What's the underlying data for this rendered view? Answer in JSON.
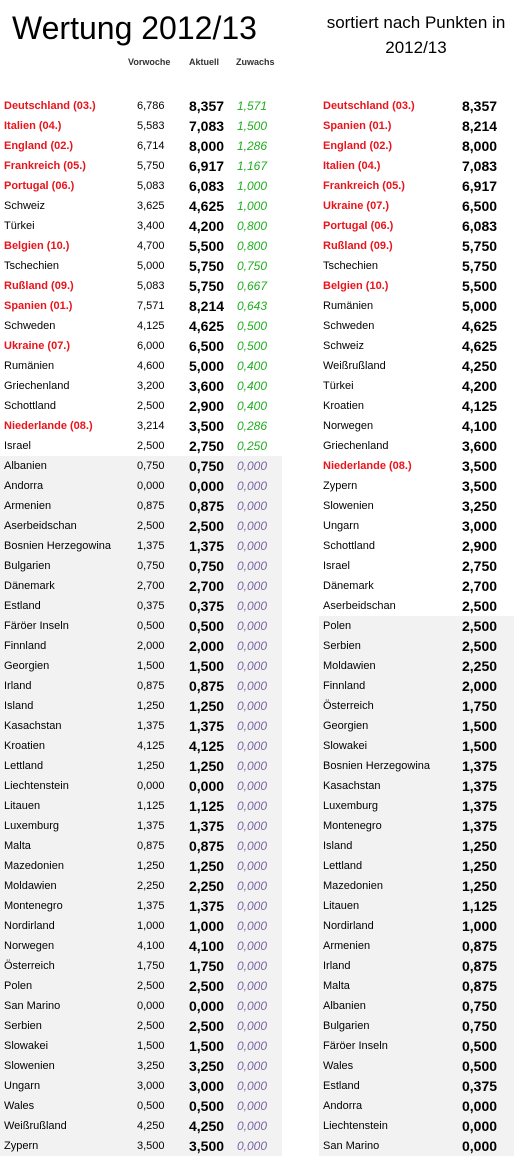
{
  "title": "Wertung 2012/13",
  "subtitle": "sortiert nach Punkten in 2012/13",
  "headers": {
    "vorwoche": "Vorwoche",
    "aktuell": "Aktuell",
    "zuwachs": "Zuwachs"
  },
  "left_rows": [
    {
      "name": "Deutschland (03.)",
      "vorwoche": "6,786",
      "aktuell": "8,357",
      "zuwachs": "1,571",
      "highlight": true
    },
    {
      "name": "Italien (04.)",
      "vorwoche": "5,583",
      "aktuell": "7,083",
      "zuwachs": "1,500",
      "highlight": true
    },
    {
      "name": "England (02.)",
      "vorwoche": "6,714",
      "aktuell": "8,000",
      "zuwachs": "1,286",
      "highlight": true
    },
    {
      "name": "Frankreich (05.)",
      "vorwoche": "5,750",
      "aktuell": "6,917",
      "zuwachs": "1,167",
      "highlight": true
    },
    {
      "name": "Portugal (06.)",
      "vorwoche": "5,083",
      "aktuell": "6,083",
      "zuwachs": "1,000",
      "highlight": true
    },
    {
      "name": "Schweiz",
      "vorwoche": "3,625",
      "aktuell": "4,625",
      "zuwachs": "1,000",
      "highlight": false
    },
    {
      "name": "Türkei",
      "vorwoche": "3,400",
      "aktuell": "4,200",
      "zuwachs": "0,800",
      "highlight": false
    },
    {
      "name": "Belgien (10.)",
      "vorwoche": "4,700",
      "aktuell": "5,500",
      "zuwachs": "0,800",
      "highlight": true
    },
    {
      "name": "Tschechien",
      "vorwoche": "5,000",
      "aktuell": "5,750",
      "zuwachs": "0,750",
      "highlight": false
    },
    {
      "name": "Rußland (09.)",
      "vorwoche": "5,083",
      "aktuell": "5,750",
      "zuwachs": "0,667",
      "highlight": true
    },
    {
      "name": "Spanien (01.)",
      "vorwoche": "7,571",
      "aktuell": "8,214",
      "zuwachs": "0,643",
      "highlight": true
    },
    {
      "name": "Schweden",
      "vorwoche": "4,125",
      "aktuell": "4,625",
      "zuwachs": "0,500",
      "highlight": false
    },
    {
      "name": "Ukraine (07.)",
      "vorwoche": "6,000",
      "aktuell": "6,500",
      "zuwachs": "0,500",
      "highlight": true
    },
    {
      "name": "Rumänien",
      "vorwoche": "4,600",
      "aktuell": "5,000",
      "zuwachs": "0,400",
      "highlight": false
    },
    {
      "name": "Griechenland",
      "vorwoche": "3,200",
      "aktuell": "3,600",
      "zuwachs": "0,400",
      "highlight": false
    },
    {
      "name": "Schottland",
      "vorwoche": "2,500",
      "aktuell": "2,900",
      "zuwachs": "0,400",
      "highlight": false
    },
    {
      "name": "Niederlande (08.)",
      "vorwoche": "3,214",
      "aktuell": "3,500",
      "zuwachs": "0,286",
      "highlight": true
    },
    {
      "name": "Israel",
      "vorwoche": "2,500",
      "aktuell": "2,750",
      "zuwachs": "0,250",
      "highlight": false
    },
    {
      "name": "Albanien",
      "vorwoche": "0,750",
      "aktuell": "0,750",
      "zuwachs": "0,000",
      "highlight": false
    },
    {
      "name": "Andorra",
      "vorwoche": "0,000",
      "aktuell": "0,000",
      "zuwachs": "0,000",
      "highlight": false
    },
    {
      "name": "Armenien",
      "vorwoche": "0,875",
      "aktuell": "0,875",
      "zuwachs": "0,000",
      "highlight": false
    },
    {
      "name": "Aserbeidschan",
      "vorwoche": "2,500",
      "aktuell": "2,500",
      "zuwachs": "0,000",
      "highlight": false
    },
    {
      "name": "Bosnien Herzegowina",
      "vorwoche": "1,375",
      "aktuell": "1,375",
      "zuwachs": "0,000",
      "highlight": false
    },
    {
      "name": "Bulgarien",
      "vorwoche": "0,750",
      "aktuell": "0,750",
      "zuwachs": "0,000",
      "highlight": false
    },
    {
      "name": "Dänemark",
      "vorwoche": "2,700",
      "aktuell": "2,700",
      "zuwachs": "0,000",
      "highlight": false
    },
    {
      "name": "Estland",
      "vorwoche": "0,375",
      "aktuell": "0,375",
      "zuwachs": "0,000",
      "highlight": false
    },
    {
      "name": "Färöer Inseln",
      "vorwoche": "0,500",
      "aktuell": "0,500",
      "zuwachs": "0,000",
      "highlight": false
    },
    {
      "name": "Finnland",
      "vorwoche": "2,000",
      "aktuell": "2,000",
      "zuwachs": "0,000",
      "highlight": false
    },
    {
      "name": "Georgien",
      "vorwoche": "1,500",
      "aktuell": "1,500",
      "zuwachs": "0,000",
      "highlight": false
    },
    {
      "name": "Irland",
      "vorwoche": "0,875",
      "aktuell": "0,875",
      "zuwachs": "0,000",
      "highlight": false
    },
    {
      "name": "Island",
      "vorwoche": "1,250",
      "aktuell": "1,250",
      "zuwachs": "0,000",
      "highlight": false
    },
    {
      "name": "Kasachstan",
      "vorwoche": "1,375",
      "aktuell": "1,375",
      "zuwachs": "0,000",
      "highlight": false
    },
    {
      "name": "Kroatien",
      "vorwoche": "4,125",
      "aktuell": "4,125",
      "zuwachs": "0,000",
      "highlight": false
    },
    {
      "name": "Lettland",
      "vorwoche": "1,250",
      "aktuell": "1,250",
      "zuwachs": "0,000",
      "highlight": false
    },
    {
      "name": "Liechtenstein",
      "vorwoche": "0,000",
      "aktuell": "0,000",
      "zuwachs": "0,000",
      "highlight": false
    },
    {
      "name": "Litauen",
      "vorwoche": "1,125",
      "aktuell": "1,125",
      "zuwachs": "0,000",
      "highlight": false
    },
    {
      "name": "Luxemburg",
      "vorwoche": "1,375",
      "aktuell": "1,375",
      "zuwachs": "0,000",
      "highlight": false
    },
    {
      "name": "Malta",
      "vorwoche": "0,875",
      "aktuell": "0,875",
      "zuwachs": "0,000",
      "highlight": false
    },
    {
      "name": "Mazedonien",
      "vorwoche": "1,250",
      "aktuell": "1,250",
      "zuwachs": "0,000",
      "highlight": false
    },
    {
      "name": "Moldawien",
      "vorwoche": "2,250",
      "aktuell": "2,250",
      "zuwachs": "0,000",
      "highlight": false
    },
    {
      "name": "Montenegro",
      "vorwoche": "1,375",
      "aktuell": "1,375",
      "zuwachs": "0,000",
      "highlight": false
    },
    {
      "name": "Nordirland",
      "vorwoche": "1,000",
      "aktuell": "1,000",
      "zuwachs": "0,000",
      "highlight": false
    },
    {
      "name": "Norwegen",
      "vorwoche": "4,100",
      "aktuell": "4,100",
      "zuwachs": "0,000",
      "highlight": false
    },
    {
      "name": "Österreich",
      "vorwoche": "1,750",
      "aktuell": "1,750",
      "zuwachs": "0,000",
      "highlight": false
    },
    {
      "name": "Polen",
      "vorwoche": "2,500",
      "aktuell": "2,500",
      "zuwachs": "0,000",
      "highlight": false
    },
    {
      "name": "San Marino",
      "vorwoche": "0,000",
      "aktuell": "0,000",
      "zuwachs": "0,000",
      "highlight": false
    },
    {
      "name": "Serbien",
      "vorwoche": "2,500",
      "aktuell": "2,500",
      "zuwachs": "0,000",
      "highlight": false
    },
    {
      "name": "Slowakei",
      "vorwoche": "1,500",
      "aktuell": "1,500",
      "zuwachs": "0,000",
      "highlight": false
    },
    {
      "name": "Slowenien",
      "vorwoche": "3,250",
      "aktuell": "3,250",
      "zuwachs": "0,000",
      "highlight": false
    },
    {
      "name": "Ungarn",
      "vorwoche": "3,000",
      "aktuell": "3,000",
      "zuwachs": "0,000",
      "highlight": false
    },
    {
      "name": "Wales",
      "vorwoche": "0,500",
      "aktuell": "0,500",
      "zuwachs": "0,000",
      "highlight": false
    },
    {
      "name": "Weißrußland",
      "vorwoche": "4,250",
      "aktuell": "4,250",
      "zuwachs": "0,000",
      "highlight": false
    },
    {
      "name": "Zypern",
      "vorwoche": "3,500",
      "aktuell": "3,500",
      "zuwachs": "0,000",
      "highlight": false
    }
  ],
  "right_rows": [
    {
      "name": "Deutschland (03.)",
      "punkte": "8,357",
      "highlight": true
    },
    {
      "name": "Spanien (01.)",
      "punkte": "8,214",
      "highlight": true
    },
    {
      "name": "England (02.)",
      "punkte": "8,000",
      "highlight": true
    },
    {
      "name": "Italien (04.)",
      "punkte": "7,083",
      "highlight": true
    },
    {
      "name": "Frankreich (05.)",
      "punkte": "6,917",
      "highlight": true
    },
    {
      "name": "Ukraine (07.)",
      "punkte": "6,500",
      "highlight": true
    },
    {
      "name": "Portugal (06.)",
      "punkte": "6,083",
      "highlight": true
    },
    {
      "name": "Rußland (09.)",
      "punkte": "5,750",
      "highlight": true
    },
    {
      "name": "Tschechien",
      "punkte": "5,750",
      "highlight": false
    },
    {
      "name": "Belgien (10.)",
      "punkte": "5,500",
      "highlight": true
    },
    {
      "name": "Rumänien",
      "punkte": "5,000",
      "highlight": false
    },
    {
      "name": "Schweden",
      "punkte": "4,625",
      "highlight": false
    },
    {
      "name": "Schweiz",
      "punkte": "4,625",
      "highlight": false
    },
    {
      "name": "Weißrußland",
      "punkte": "4,250",
      "highlight": false
    },
    {
      "name": "Türkei",
      "punkte": "4,200",
      "highlight": false
    },
    {
      "name": "Kroatien",
      "punkte": "4,125",
      "highlight": false
    },
    {
      "name": "Norwegen",
      "punkte": "4,100",
      "highlight": false
    },
    {
      "name": "Griechenland",
      "punkte": "3,600",
      "highlight": false
    },
    {
      "name": "Niederlande (08.)",
      "punkte": "3,500",
      "highlight": true
    },
    {
      "name": "Zypern",
      "punkte": "3,500",
      "highlight": false
    },
    {
      "name": "Slowenien",
      "punkte": "3,250",
      "highlight": false
    },
    {
      "name": "Ungarn",
      "punkte": "3,000",
      "highlight": false
    },
    {
      "name": "Schottland",
      "punkte": "2,900",
      "highlight": false
    },
    {
      "name": "Israel",
      "punkte": "2,750",
      "highlight": false
    },
    {
      "name": "Dänemark",
      "punkte": "2,700",
      "highlight": false
    },
    {
      "name": "Aserbeidschan",
      "punkte": "2,500",
      "highlight": false
    },
    {
      "name": "Polen",
      "punkte": "2,500",
      "highlight": false
    },
    {
      "name": "Serbien",
      "punkte": "2,500",
      "highlight": false
    },
    {
      "name": "Moldawien",
      "punkte": "2,250",
      "highlight": false
    },
    {
      "name": "Finnland",
      "punkte": "2,000",
      "highlight": false
    },
    {
      "name": "Österreich",
      "punkte": "1,750",
      "highlight": false
    },
    {
      "name": "Georgien",
      "punkte": "1,500",
      "highlight": false
    },
    {
      "name": "Slowakei",
      "punkte": "1,500",
      "highlight": false
    },
    {
      "name": "Bosnien Herzegowina",
      "punkte": "1,375",
      "highlight": false
    },
    {
      "name": "Kasachstan",
      "punkte": "1,375",
      "highlight": false
    },
    {
      "name": "Luxemburg",
      "punkte": "1,375",
      "highlight": false
    },
    {
      "name": "Montenegro",
      "punkte": "1,375",
      "highlight": false
    },
    {
      "name": "Island",
      "punkte": "1,250",
      "highlight": false
    },
    {
      "name": "Lettland",
      "punkte": "1,250",
      "highlight": false
    },
    {
      "name": "Mazedonien",
      "punkte": "1,250",
      "highlight": false
    },
    {
      "name": "Litauen",
      "punkte": "1,125",
      "highlight": false
    },
    {
      "name": "Nordirland",
      "punkte": "1,000",
      "highlight": false
    },
    {
      "name": "Armenien",
      "punkte": "0,875",
      "highlight": false
    },
    {
      "name": "Irland",
      "punkte": "0,875",
      "highlight": false
    },
    {
      "name": "Malta",
      "punkte": "0,875",
      "highlight": false
    },
    {
      "name": "Albanien",
      "punkte": "0,750",
      "highlight": false
    },
    {
      "name": "Bulgarien",
      "punkte": "0,750",
      "highlight": false
    },
    {
      "name": "Färöer Inseln",
      "punkte": "0,500",
      "highlight": false
    },
    {
      "name": "Wales",
      "punkte": "0,500",
      "highlight": false
    },
    {
      "name": "Estland",
      "punkte": "0,375",
      "highlight": false
    },
    {
      "name": "Andorra",
      "punkte": "0,000",
      "highlight": false
    },
    {
      "name": "Liechtenstein",
      "punkte": "0,000",
      "highlight": false
    },
    {
      "name": "San Marino",
      "punkte": "0,000",
      "highlight": false
    }
  ]
}
